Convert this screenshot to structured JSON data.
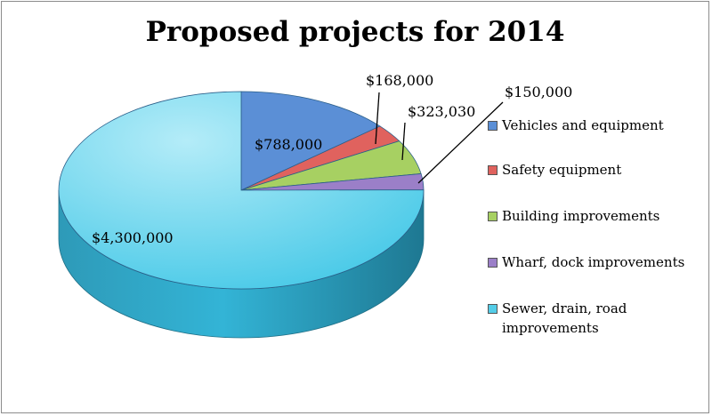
{
  "chart_data": {
    "type": "pie",
    "title": "Proposed projects for 2014",
    "slices": [
      {
        "name": "Vehicles and equipment",
        "value": 788000,
        "label": "$788,000",
        "color": "#5b8fd6"
      },
      {
        "name": "Safety equipment",
        "value": 168000,
        "label": "$168,000",
        "color": "#e0625e"
      },
      {
        "name": "Building improvements",
        "value": 323030,
        "label": "$323,030",
        "color": "#a7d062"
      },
      {
        "name": "Wharf, dock improvements",
        "value": 150000,
        "label": "$150,000",
        "color": "#9b7fc8"
      },
      {
        "name": "Sewer, drain, road improvements",
        "value": 4300000,
        "label": "$4,300,000",
        "color": "#53cde8"
      }
    ],
    "legend_position": "right",
    "style": "3d"
  }
}
